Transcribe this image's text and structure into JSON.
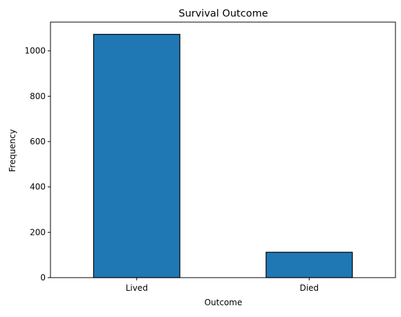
{
  "chart_data": {
    "type": "bar",
    "title": "Survival Outcome",
    "xlabel": "Outcome",
    "ylabel": "Frequency",
    "categories": [
      "Lived",
      "Died"
    ],
    "values": [
      1073,
      112
    ],
    "ylim": [
      0,
      1127
    ],
    "yticks": [
      0,
      200,
      400,
      600,
      800,
      1000
    ],
    "grid": false,
    "legend": "none",
    "colors": {
      "bar_fill": "#1f77b4",
      "bar_edge": "#000000",
      "axis": "#000000",
      "background": "#ffffff"
    }
  }
}
